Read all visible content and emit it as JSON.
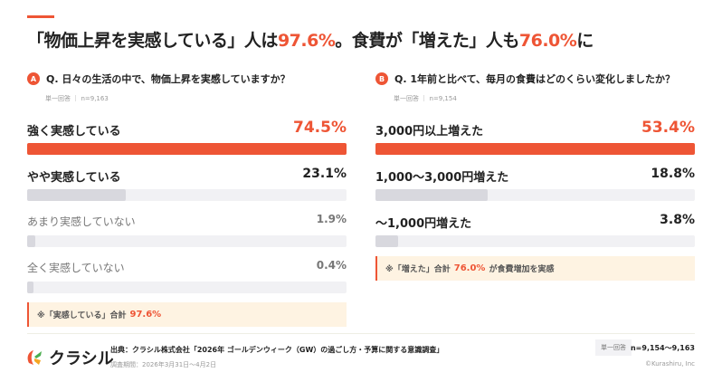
{
  "header": {
    "title_parts": [
      "「物価上昇を実感している」人は",
      "97.6%",
      "。食費が「増えた」人も",
      "76.0%",
      "に"
    ]
  },
  "colors": {
    "accent": "#EE5535",
    "gray_bar": "#d8d8de",
    "track": "#f1f1f4",
    "note_bg": "#FEF3E2"
  },
  "chart_data": [
    {
      "type": "bar",
      "badge": "A",
      "title": "Q. 日々の生活の中で、物価上昇を実感していますか？",
      "answer_type": "単一回答",
      "n": "n=9,163",
      "categories": [
        "強く実感している",
        "やや実感している",
        "あまり実感していない",
        "全く実感していない"
      ],
      "values": [
        74.5,
        23.1,
        1.9,
        0.4
      ],
      "value_labels": [
        "74.5%",
        "23.1%",
        "1.9%",
        "0.4%"
      ],
      "note": {
        "prefix": "※「実感している」合計",
        "value": "97.6%",
        "suffix": ""
      }
    },
    {
      "type": "bar",
      "badge": "B",
      "title": "Q. 1年前と比べて、毎月の食費はどのくらい変化しましたか？",
      "answer_type": "単一回答",
      "n": "n=9,154",
      "categories": [
        "3,000円以上増えた",
        "1,000〜3,000円増えた",
        "〜1,000円増えた"
      ],
      "values": [
        53.4,
        18.8,
        3.8
      ],
      "value_labels": [
        "53.4%",
        "18.8%",
        "3.8%"
      ],
      "note": {
        "prefix": "※「増えた」合計",
        "value": "76.0%",
        "suffix": "が食費増加を実感"
      }
    }
  ],
  "footer": {
    "logo": "クラシル",
    "source": "出典：クラシル株式会社「2026年 ゴールデンウィーク（GW）の過ごし方・予算に関する意識調査」",
    "period": "調査期間：2026年3月31日〜4月2日",
    "answer_type": "単一回答",
    "n": "n=9,154〜9,163",
    "copyright": "©Kurashiru, Inc"
  }
}
